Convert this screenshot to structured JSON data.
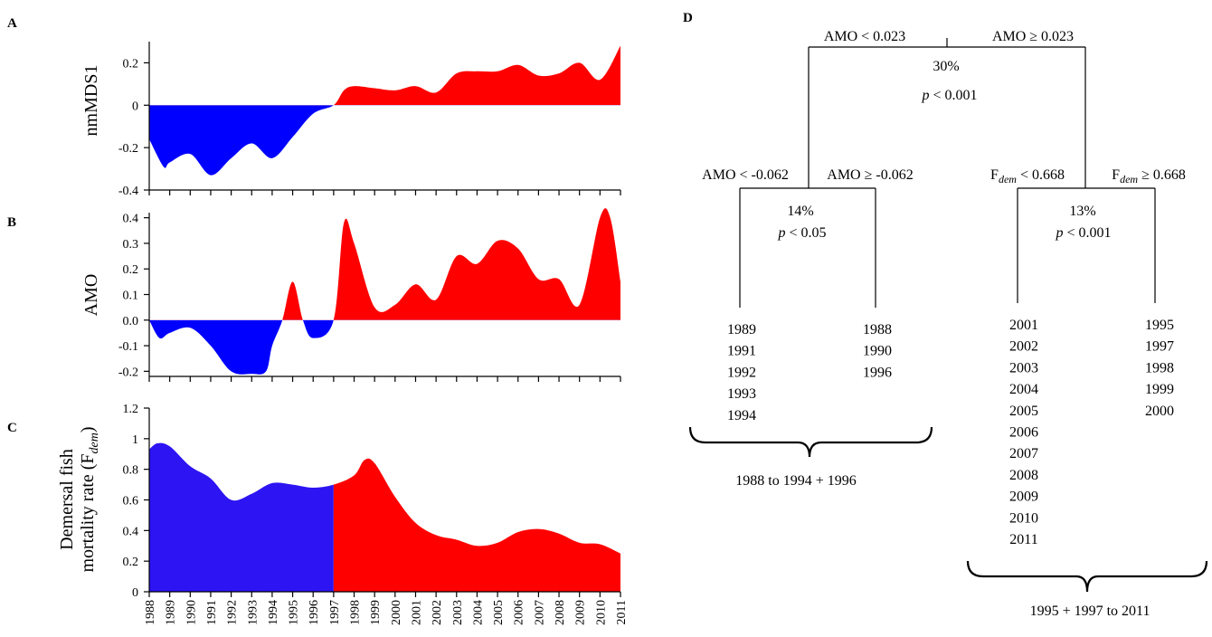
{
  "panels": {
    "A": "A",
    "B": "B",
    "C": "C",
    "D": "D"
  },
  "colors": {
    "below": "#0000ff",
    "above": "#ff0000",
    "fdem_before": "#2d14f2",
    "fdem_after": "#ff0000"
  },
  "chart_data": [
    {
      "panel": "A",
      "type": "area",
      "ylabel": "nmMDS1",
      "ylim": [
        -0.4,
        0.3
      ],
      "yticks": [
        -0.4,
        -0.2,
        0,
        0.2
      ],
      "ytick_labels": [
        "-0.4",
        "-0.2",
        "0",
        "0.2"
      ],
      "x": [
        1988,
        1988.7,
        1989,
        1990,
        1991,
        1992,
        1993,
        1994,
        1995,
        1996,
        1997,
        1997.5,
        1998,
        1999,
        2000,
        2001,
        2002,
        2003,
        2004,
        2005,
        2006,
        2007,
        2008,
        2009,
        2010,
        2011
      ],
      "values": [
        -0.16,
        -0.29,
        -0.27,
        -0.23,
        -0.33,
        -0.25,
        -0.18,
        -0.25,
        -0.15,
        -0.04,
        0.0,
        0.07,
        0.09,
        0.08,
        0.07,
        0.09,
        0.06,
        0.15,
        0.16,
        0.16,
        0.19,
        0.14,
        0.15,
        0.2,
        0.12,
        0.28
      ],
      "fill_rule": "blue where value < 0, red where value > 0"
    },
    {
      "panel": "B",
      "type": "area",
      "ylabel": "AMO",
      "ylim": [
        -0.22,
        0.42
      ],
      "yticks": [
        -0.2,
        -0.1,
        0.0,
        0.1,
        0.2,
        0.3,
        0.4
      ],
      "ytick_labels": [
        "-0.2",
        "-0.1",
        "0.0",
        "0.1",
        "0.2",
        "0.3",
        "0.4"
      ],
      "x": [
        1988,
        1988.5,
        1989,
        1990,
        1991,
        1992,
        1993,
        1993.7,
        1994,
        1994.5,
        1995,
        1995.5,
        1996,
        1997,
        1997.5,
        1998,
        1999,
        2000,
        2001,
        2002,
        2003,
        2004,
        2005,
        2006,
        2007,
        2008,
        2009,
        2010,
        2010.5,
        2011
      ],
      "values": [
        0.0,
        -0.07,
        -0.05,
        -0.03,
        -0.1,
        -0.2,
        -0.21,
        -0.2,
        -0.1,
        0.0,
        0.15,
        0.0,
        -0.07,
        0.0,
        0.38,
        0.3,
        0.05,
        0.06,
        0.14,
        0.08,
        0.25,
        0.22,
        0.31,
        0.28,
        0.16,
        0.16,
        0.06,
        0.4,
        0.4,
        0.15
      ],
      "fill_rule": "blue where value < 0, red where value > 0"
    },
    {
      "panel": "C",
      "type": "area",
      "ylabel_line1": "Demersal fish",
      "ylabel_line2": "mortality rate (F",
      "ylabel_sub": "dem",
      "ylabel_end": ")",
      "ylim": [
        0,
        1.2
      ],
      "yticks": [
        0,
        0.2,
        0.4,
        0.6,
        0.8,
        1,
        1.2
      ],
      "ytick_labels": [
        "0",
        "0.2",
        "0.4",
        "0.6",
        "0.8",
        "1",
        "1.2"
      ],
      "x": [
        1988,
        1988.4,
        1989,
        1990,
        1991,
        1992,
        1993,
        1994,
        1995,
        1996,
        1997,
        1998,
        1998.5,
        1999,
        2000,
        2001,
        2002,
        2003,
        2004,
        2005,
        2006,
        2007,
        2008,
        2009,
        2010,
        2011
      ],
      "values": [
        0.93,
        0.97,
        0.95,
        0.82,
        0.74,
        0.6,
        0.64,
        0.71,
        0.7,
        0.68,
        0.7,
        0.76,
        0.86,
        0.84,
        0.62,
        0.45,
        0.37,
        0.34,
        0.3,
        0.32,
        0.39,
        0.41,
        0.38,
        0.32,
        0.31,
        0.25
      ],
      "split_x": 1997,
      "xlabels": [
        "1988",
        "1989",
        "1990",
        "1991",
        "1992",
        "1993",
        "1994",
        "1995",
        "1996",
        "1997",
        "1998",
        "1999",
        "2000",
        "2001",
        "2002",
        "2003",
        "2004",
        "2005",
        "2006",
        "2007",
        "2008",
        "2009",
        "2010",
        "2011"
      ]
    }
  ],
  "tree": {
    "root": {
      "left_rule": "AMO < 0.023",
      "right_rule": "AMO ≥ 0.023",
      "percent": "30%",
      "p_italic": "p",
      "p_rest": " < 0.001"
    },
    "left_node": {
      "left_rule": "AMO < -0.062",
      "right_rule": "AMO ≥ -0.062",
      "percent": "14%",
      "p_italic": "p",
      "p_rest": " < 0.05",
      "left_leaf": [
        "1989",
        "1991",
        "1992",
        "1993",
        "1994"
      ],
      "right_leaf": [
        "1988",
        "1990",
        "1996"
      ],
      "group_label": "1988 to 1994 + 1996"
    },
    "right_node": {
      "left_rule_base": "F",
      "left_rule_sub": "dem",
      "left_rule_rest": " < 0.668",
      "right_rule_base": "F",
      "right_rule_sub": "dem",
      "right_rule_rest": " ≥ 0.668",
      "percent": "13%",
      "p_italic": "p",
      "p_rest": " < 0.001",
      "left_leaf": [
        "2001",
        "2002",
        "2003",
        "2004",
        "2005",
        "2006",
        "2007",
        "2008",
        "2009",
        "2010",
        "2011"
      ],
      "right_leaf": [
        "1995",
        "1997",
        "1998",
        "1999",
        "2000"
      ],
      "group_label": "1995 + 1997 to 2011"
    }
  }
}
